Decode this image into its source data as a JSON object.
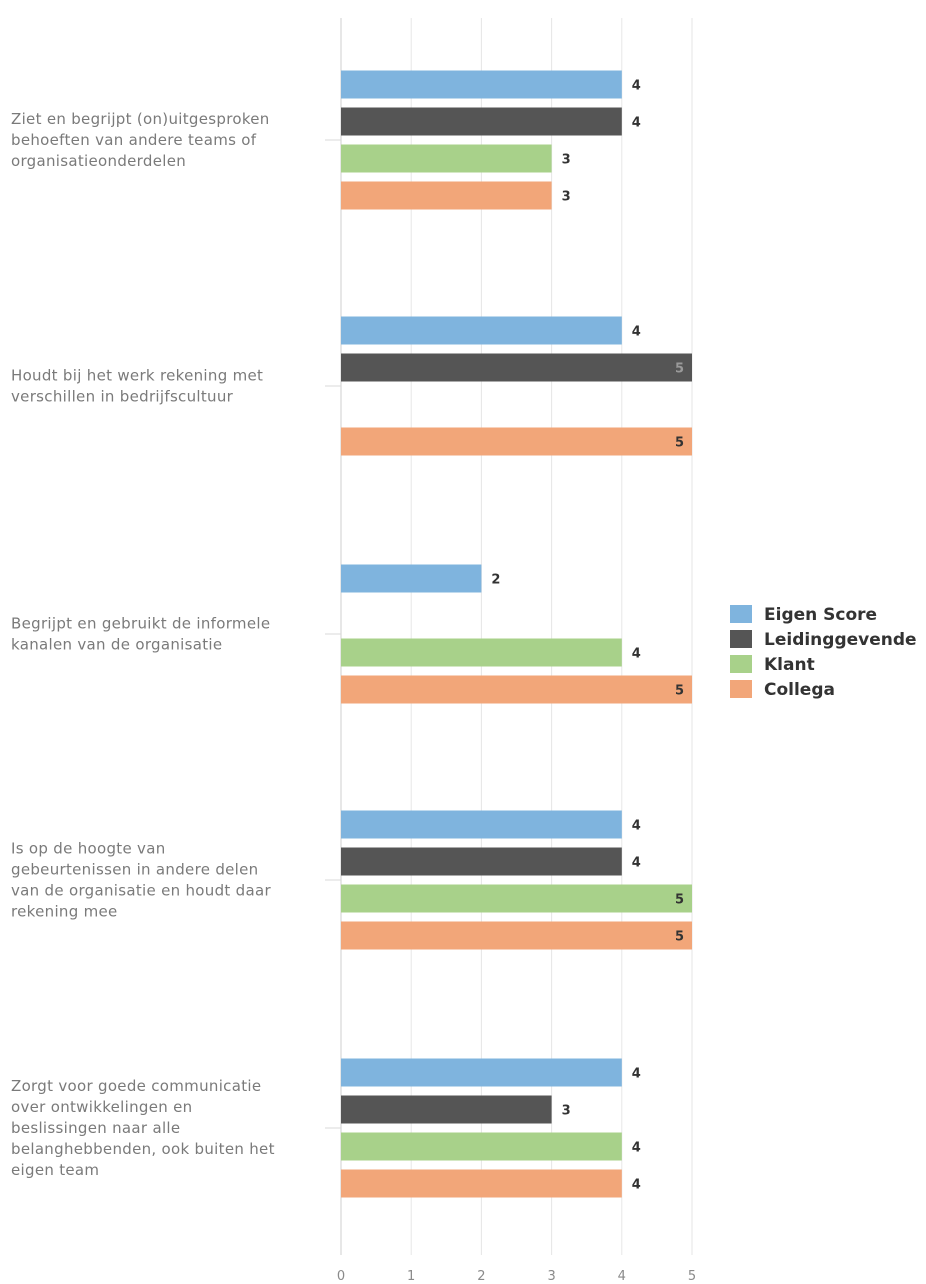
{
  "chart_data": {
    "type": "bar",
    "orientation": "horizontal",
    "categories": [
      "Ziet en begrijpt (on)uitgesproken behoeften van andere teams of organisatieonderdelen",
      "Houdt bij het werk rekening met verschillen in bedrijfscultuur",
      "Begrijpt en gebruikt de informele kanalen van de organisatie",
      "Is op de hoogte van gebeurtenissen in andere delen van de organisatie en houdt daar rekening mee",
      "Zorgt voor goede communicatie over ontwikkelingen en beslissingen naar alle belanghebbenden, ook buiten het eigen team"
    ],
    "category_lines": [
      [
        "Ziet en begrijpt (on)uitgesproken",
        "behoeften van andere teams of",
        "organisatieonderdelen"
      ],
      [
        "Houdt bij het werk rekening met",
        "verschillen in bedrijfscultuur"
      ],
      [
        "Begrijpt en gebruikt de informele",
        "kanalen van de organisatie"
      ],
      [
        "Is op de hoogte van",
        "gebeurtenissen in andere delen",
        "van de organisatie en houdt daar",
        "rekening mee"
      ],
      [
        "Zorgt voor goede communicatie",
        "over ontwikkelingen en",
        "beslissingen naar alle",
        "belanghebbenden, ook buiten het",
        "eigen team"
      ]
    ],
    "series": [
      {
        "name": "Eigen Score",
        "color": "#7fb4de",
        "values": [
          4,
          4,
          2,
          4,
          4
        ]
      },
      {
        "name": "Leidinggevende",
        "color": "#555555",
        "values": [
          4,
          5,
          null,
          4,
          3
        ]
      },
      {
        "name": "Klant",
        "color": "#a8d18a",
        "values": [
          3,
          null,
          4,
          5,
          4
        ]
      },
      {
        "name": "Collega",
        "color": "#f2a679",
        "values": [
          3,
          5,
          5,
          5,
          4
        ]
      }
    ],
    "xlim": [
      0,
      5
    ],
    "xticks": [
      "0",
      "1",
      "2",
      "3",
      "4",
      "5"
    ],
    "grid": true,
    "legend_position": "right"
  }
}
